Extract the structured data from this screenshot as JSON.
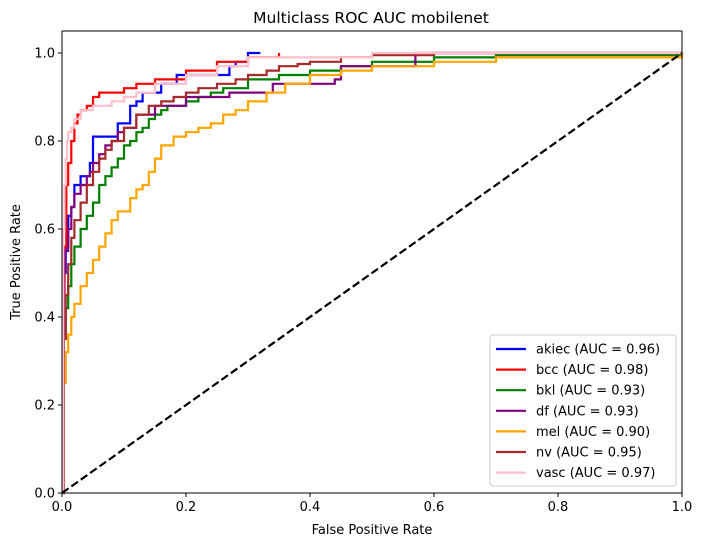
{
  "chart_data": {
    "type": "line",
    "title": "Multiclass ROC AUC mobilenet",
    "xlabel": "False Positive Rate",
    "ylabel": "True Positive Rate",
    "xlim": [
      0.0,
      1.0
    ],
    "ylim": [
      0.0,
      1.05
    ],
    "xticks": [
      "0.0",
      "0.2",
      "0.4",
      "0.6",
      "0.8",
      "1.0"
    ],
    "yticks": [
      "0.0",
      "0.2",
      "0.4",
      "0.6",
      "0.8",
      "1.0"
    ],
    "grid": false,
    "legend_position": "lower-right",
    "diagonal": {
      "x": [
        0,
        1
      ],
      "y": [
        0,
        1
      ],
      "color": "#000000",
      "style": "dashed"
    },
    "series": [
      {
        "name": "akiec (AUC = 0.96)",
        "color": "#0000ff",
        "x": [
          0,
          0.002,
          0.004,
          0.006,
          0.01,
          0.015,
          0.02,
          0.03,
          0.045,
          0.05,
          0.06,
          0.08,
          0.09,
          0.1,
          0.11,
          0.115,
          0.12,
          0.13,
          0.14,
          0.16,
          0.17,
          0.185,
          0.2,
          0.22,
          0.25,
          0.27,
          0.28,
          0.3,
          0.32
        ],
        "y": [
          0,
          0.38,
          0.5,
          0.56,
          0.63,
          0.65,
          0.7,
          0.72,
          0.75,
          0.81,
          0.81,
          0.81,
          0.84,
          0.84,
          0.88,
          0.88,
          0.89,
          0.91,
          0.91,
          0.93,
          0.93,
          0.95,
          0.95,
          0.95,
          0.95,
          0.97,
          0.98,
          1.0,
          1.0
        ]
      },
      {
        "name": "bcc (AUC = 0.98)",
        "color": "#ff0000",
        "x": [
          0,
          0.002,
          0.004,
          0.007,
          0.01,
          0.015,
          0.02,
          0.025,
          0.03,
          0.04,
          0.05,
          0.06,
          0.08,
          0.1,
          0.12,
          0.15,
          0.2,
          0.25,
          0.3,
          0.35
        ],
        "y": [
          0,
          0.45,
          0.56,
          0.7,
          0.75,
          0.8,
          0.84,
          0.86,
          0.87,
          0.88,
          0.9,
          0.91,
          0.91,
          0.92,
          0.93,
          0.94,
          0.96,
          0.98,
          0.99,
          1.0
        ]
      },
      {
        "name": "bkl (AUC = 0.93)",
        "color": "#008000",
        "x": [
          0,
          0.003,
          0.006,
          0.01,
          0.015,
          0.02,
          0.03,
          0.04,
          0.05,
          0.06,
          0.07,
          0.08,
          0.09,
          0.1,
          0.11,
          0.12,
          0.13,
          0.14,
          0.15,
          0.16,
          0.17,
          0.2,
          0.22,
          0.24,
          0.26,
          0.3,
          0.35,
          0.4,
          0.45,
          0.5,
          0.6,
          0.7,
          1.0
        ],
        "y": [
          0,
          0.35,
          0.42,
          0.47,
          0.52,
          0.56,
          0.6,
          0.63,
          0.66,
          0.7,
          0.72,
          0.74,
          0.76,
          0.79,
          0.8,
          0.82,
          0.83,
          0.85,
          0.86,
          0.87,
          0.88,
          0.89,
          0.9,
          0.91,
          0.92,
          0.94,
          0.95,
          0.96,
          0.97,
          0.98,
          0.99,
          0.995,
          1.0
        ]
      },
      {
        "name": "df (AUC = 0.93)",
        "color": "#800080",
        "x": [
          0,
          0.003,
          0.005,
          0.01,
          0.015,
          0.02,
          0.03,
          0.04,
          0.045,
          0.05,
          0.06,
          0.07,
          0.08,
          0.09,
          0.1,
          0.12,
          0.15,
          0.18,
          0.2,
          0.25,
          0.27,
          0.3,
          0.34,
          0.4,
          0.44,
          0.45,
          0.5,
          0.55,
          0.57,
          0.6,
          1.0
        ],
        "y": [
          0,
          0.5,
          0.55,
          0.6,
          0.65,
          0.68,
          0.7,
          0.72,
          0.73,
          0.75,
          0.77,
          0.79,
          0.8,
          0.82,
          0.83,
          0.86,
          0.88,
          0.88,
          0.9,
          0.9,
          0.91,
          0.91,
          0.93,
          0.93,
          0.94,
          0.97,
          0.97,
          0.97,
          1.0,
          1.0,
          1.0
        ]
      },
      {
        "name": "mel (AUC = 0.90)",
        "color": "#ffa500",
        "x": [
          0,
          0.003,
          0.006,
          0.01,
          0.015,
          0.02,
          0.03,
          0.04,
          0.05,
          0.06,
          0.07,
          0.08,
          0.09,
          0.1,
          0.11,
          0.12,
          0.13,
          0.14,
          0.15,
          0.16,
          0.18,
          0.2,
          0.22,
          0.24,
          0.26,
          0.28,
          0.3,
          0.33,
          0.36,
          0.4,
          0.45,
          0.5,
          0.55,
          0.6,
          0.65,
          0.7,
          1.0
        ],
        "y": [
          0,
          0.25,
          0.32,
          0.36,
          0.4,
          0.43,
          0.47,
          0.5,
          0.53,
          0.56,
          0.59,
          0.62,
          0.64,
          0.64,
          0.67,
          0.69,
          0.7,
          0.73,
          0.76,
          0.79,
          0.81,
          0.82,
          0.83,
          0.84,
          0.86,
          0.87,
          0.89,
          0.91,
          0.93,
          0.95,
          0.96,
          0.97,
          0.97,
          0.98,
          0.98,
          0.99,
          1.0
        ]
      },
      {
        "name": "nv (AUC = 0.95)",
        "color": "#a52a2a",
        "x": [
          0,
          0.003,
          0.006,
          0.01,
          0.015,
          0.02,
          0.03,
          0.04,
          0.05,
          0.06,
          0.07,
          0.08,
          0.1,
          0.12,
          0.14,
          0.16,
          0.18,
          0.2,
          0.22,
          0.25,
          0.28,
          0.3,
          0.33,
          0.35,
          0.38,
          0.4,
          0.45,
          0.5,
          0.6,
          0.8,
          1.0
        ],
        "y": [
          0,
          0.35,
          0.45,
          0.52,
          0.58,
          0.62,
          0.66,
          0.7,
          0.73,
          0.76,
          0.78,
          0.8,
          0.83,
          0.86,
          0.88,
          0.89,
          0.9,
          0.91,
          0.92,
          0.93,
          0.94,
          0.95,
          0.96,
          0.97,
          0.975,
          0.98,
          0.99,
          0.995,
          1.0,
          1.0,
          1.0
        ]
      },
      {
        "name": "vasc (AUC = 0.97)",
        "color": "#ffc0cb",
        "x": [
          0,
          0.002,
          0.004,
          0.006,
          0.008,
          0.01,
          0.015,
          0.02,
          0.03,
          0.05,
          0.08,
          0.1,
          0.12,
          0.15,
          0.2,
          0.25,
          0.3,
          0.5,
          1.0
        ],
        "y": [
          0,
          0.6,
          0.7,
          0.76,
          0.8,
          0.82,
          0.83,
          0.85,
          0.87,
          0.88,
          0.89,
          0.9,
          0.91,
          0.93,
          0.95,
          0.97,
          0.99,
          1.0,
          1.0
        ]
      }
    ]
  }
}
